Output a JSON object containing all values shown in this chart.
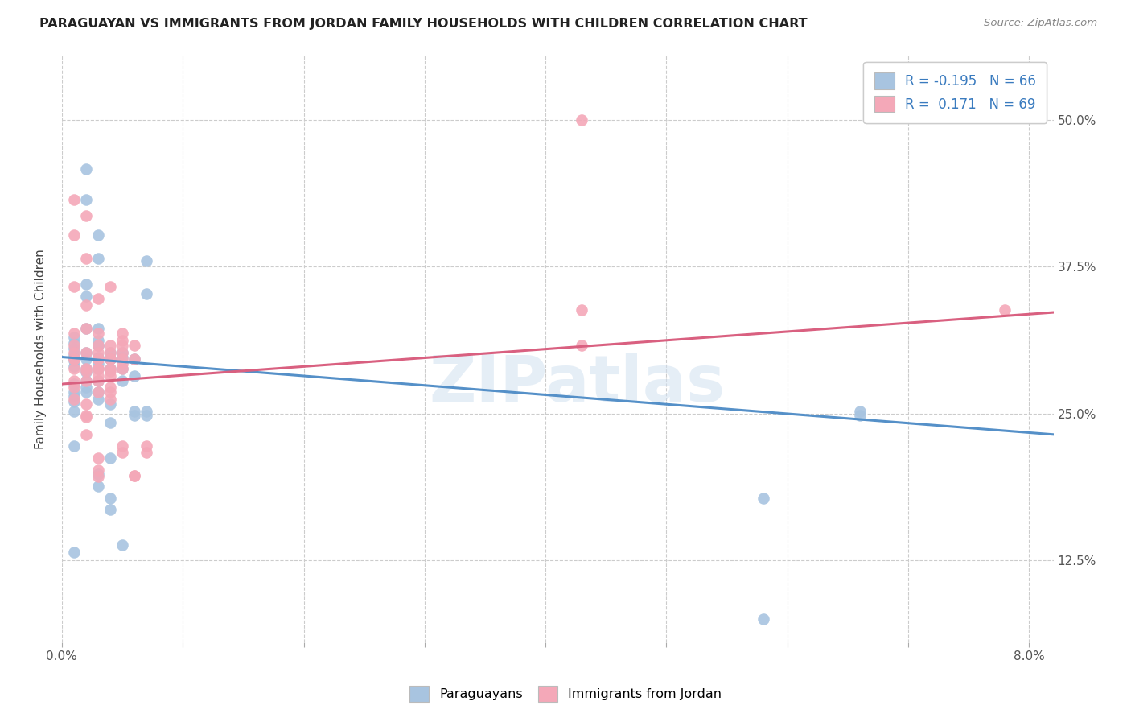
{
  "title": "PARAGUAYAN VS IMMIGRANTS FROM JORDAN FAMILY HOUSEHOLDS WITH CHILDREN CORRELATION CHART",
  "source": "Source: ZipAtlas.com",
  "ylabel": "Family Households with Children",
  "blue_R": -0.195,
  "blue_N": 66,
  "pink_R": 0.171,
  "pink_N": 69,
  "blue_color": "#a8c4e0",
  "pink_color": "#f4a8b8",
  "blue_line_color": "#5590c8",
  "pink_line_color": "#d96080",
  "watermark": "ZIPatlas",
  "blue_points": [
    [
      0.001,
      0.3
    ],
    [
      0.001,
      0.295
    ],
    [
      0.001,
      0.305
    ],
    [
      0.001,
      0.29
    ],
    [
      0.001,
      0.275
    ],
    [
      0.001,
      0.268
    ],
    [
      0.001,
      0.26
    ],
    [
      0.001,
      0.252
    ],
    [
      0.001,
      0.265
    ],
    [
      0.001,
      0.298
    ],
    [
      0.001,
      0.31
    ],
    [
      0.001,
      0.315
    ],
    [
      0.002,
      0.302
    ],
    [
      0.002,
      0.288
    ],
    [
      0.002,
      0.278
    ],
    [
      0.002,
      0.268
    ],
    [
      0.002,
      0.296
    ],
    [
      0.002,
      0.322
    ],
    [
      0.002,
      0.35
    ],
    [
      0.002,
      0.36
    ],
    [
      0.002,
      0.272
    ],
    [
      0.002,
      0.285
    ],
    [
      0.003,
      0.292
    ],
    [
      0.003,
      0.308
    ],
    [
      0.003,
      0.298
    ],
    [
      0.003,
      0.312
    ],
    [
      0.003,
      0.322
    ],
    [
      0.003,
      0.288
    ],
    [
      0.003,
      0.278
    ],
    [
      0.003,
      0.268
    ],
    [
      0.003,
      0.262
    ],
    [
      0.003,
      0.308
    ],
    [
      0.003,
      0.198
    ],
    [
      0.003,
      0.188
    ],
    [
      0.004,
      0.296
    ],
    [
      0.004,
      0.302
    ],
    [
      0.004,
      0.288
    ],
    [
      0.004,
      0.178
    ],
    [
      0.004,
      0.168
    ],
    [
      0.004,
      0.212
    ],
    [
      0.005,
      0.302
    ],
    [
      0.005,
      0.288
    ],
    [
      0.005,
      0.278
    ],
    [
      0.005,
      0.298
    ],
    [
      0.006,
      0.296
    ],
    [
      0.006,
      0.282
    ],
    [
      0.007,
      0.352
    ],
    [
      0.007,
      0.38
    ],
    [
      0.001,
      0.222
    ],
    [
      0.001,
      0.132
    ],
    [
      0.002,
      0.432
    ],
    [
      0.002,
      0.458
    ],
    [
      0.003,
      0.382
    ],
    [
      0.003,
      0.402
    ],
    [
      0.004,
      0.296
    ],
    [
      0.004,
      0.258
    ],
    [
      0.004,
      0.242
    ],
    [
      0.005,
      0.138
    ],
    [
      0.006,
      0.252
    ],
    [
      0.006,
      0.248
    ],
    [
      0.007,
      0.252
    ],
    [
      0.007,
      0.248
    ],
    [
      0.066,
      0.252
    ],
    [
      0.066,
      0.248
    ],
    [
      0.058,
      0.178
    ],
    [
      0.058,
      0.075
    ]
  ],
  "pink_points": [
    [
      0.001,
      0.288
    ],
    [
      0.001,
      0.296
    ],
    [
      0.001,
      0.272
    ],
    [
      0.001,
      0.262
    ],
    [
      0.001,
      0.278
    ],
    [
      0.001,
      0.308
    ],
    [
      0.001,
      0.318
    ],
    [
      0.001,
      0.302
    ],
    [
      0.001,
      0.296
    ],
    [
      0.002,
      0.382
    ],
    [
      0.002,
      0.322
    ],
    [
      0.002,
      0.342
    ],
    [
      0.002,
      0.302
    ],
    [
      0.002,
      0.288
    ],
    [
      0.002,
      0.278
    ],
    [
      0.002,
      0.248
    ],
    [
      0.002,
      0.286
    ],
    [
      0.002,
      0.258
    ],
    [
      0.002,
      0.232
    ],
    [
      0.002,
      0.247
    ],
    [
      0.003,
      0.296
    ],
    [
      0.003,
      0.308
    ],
    [
      0.003,
      0.318
    ],
    [
      0.003,
      0.296
    ],
    [
      0.003,
      0.288
    ],
    [
      0.003,
      0.282
    ],
    [
      0.003,
      0.278
    ],
    [
      0.003,
      0.268
    ],
    [
      0.003,
      0.302
    ],
    [
      0.003,
      0.296
    ],
    [
      0.003,
      0.288
    ],
    [
      0.003,
      0.212
    ],
    [
      0.003,
      0.202
    ],
    [
      0.003,
      0.196
    ],
    [
      0.004,
      0.308
    ],
    [
      0.004,
      0.288
    ],
    [
      0.004,
      0.296
    ],
    [
      0.004,
      0.286
    ],
    [
      0.004,
      0.302
    ],
    [
      0.004,
      0.296
    ],
    [
      0.004,
      0.282
    ],
    [
      0.004,
      0.268
    ],
    [
      0.004,
      0.262
    ],
    [
      0.004,
      0.272
    ],
    [
      0.005,
      0.292
    ],
    [
      0.005,
      0.302
    ],
    [
      0.005,
      0.296
    ],
    [
      0.005,
      0.288
    ],
    [
      0.005,
      0.312
    ],
    [
      0.005,
      0.308
    ],
    [
      0.005,
      0.222
    ],
    [
      0.005,
      0.217
    ],
    [
      0.006,
      0.296
    ],
    [
      0.006,
      0.308
    ],
    [
      0.006,
      0.197
    ],
    [
      0.007,
      0.222
    ],
    [
      0.007,
      0.217
    ],
    [
      0.001,
      0.432
    ],
    [
      0.001,
      0.402
    ],
    [
      0.001,
      0.358
    ],
    [
      0.002,
      0.418
    ],
    [
      0.003,
      0.348
    ],
    [
      0.004,
      0.358
    ],
    [
      0.005,
      0.318
    ],
    [
      0.006,
      0.197
    ],
    [
      0.043,
      0.338
    ],
    [
      0.043,
      0.308
    ],
    [
      0.043,
      0.5
    ],
    [
      0.078,
      0.338
    ]
  ],
  "xlim": [
    0.0,
    0.082
  ],
  "ylim": [
    0.055,
    0.555
  ],
  "ytick_vals": [
    0.125,
    0.25,
    0.375,
    0.5
  ],
  "ytick_labels": [
    "12.5%",
    "25.0%",
    "37.5%",
    "50.0%"
  ],
  "xtick_vals": [
    0.0,
    0.01,
    0.02,
    0.03,
    0.04,
    0.05,
    0.06,
    0.07,
    0.08
  ],
  "blue_trend_x": [
    0.0,
    0.082
  ],
  "blue_trend_y": [
    0.298,
    0.232
  ],
  "pink_trend_x": [
    0.0,
    0.082
  ],
  "pink_trend_y": [
    0.275,
    0.336
  ]
}
